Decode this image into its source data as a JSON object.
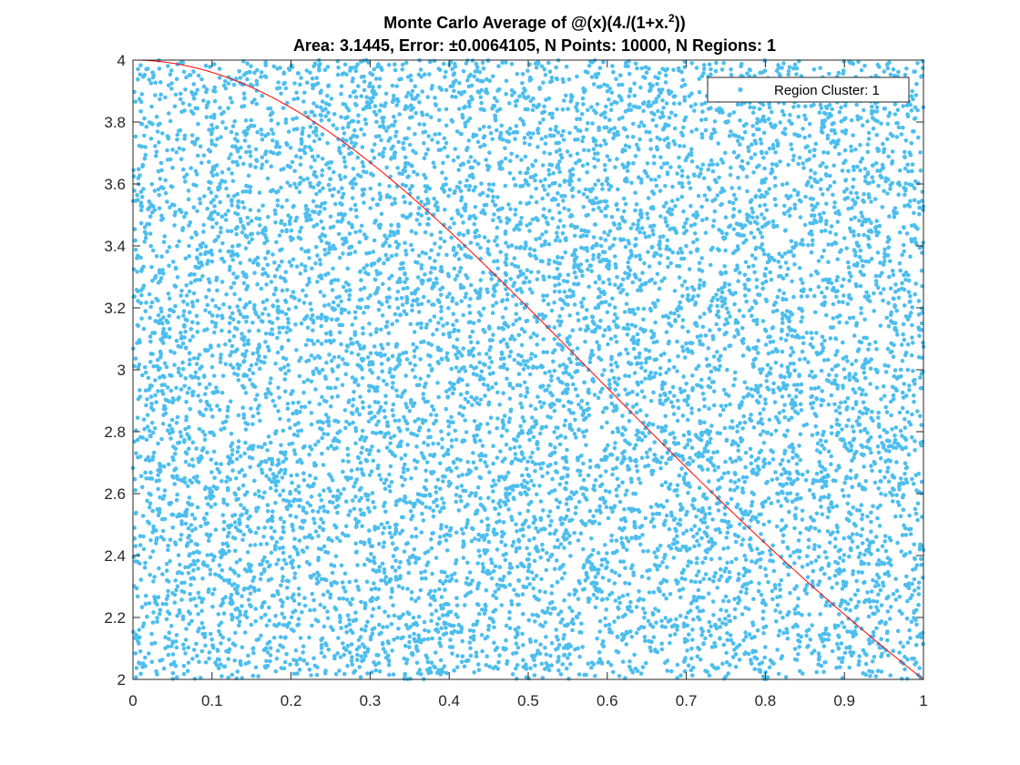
{
  "chart_data": {
    "type": "scatter",
    "title_line1_prefix": "Monte Carlo Average of @(x)(4./(1+x.",
    "title_line1_exponent": "2",
    "title_line1_suffix": "))",
    "title_line2": "Area: 3.1445, Error: ±0.0064105, N Points: 10000, N Regions: 1",
    "xlabel": "",
    "ylabel": "",
    "xlim": [
      0,
      1
    ],
    "ylim": [
      2,
      4
    ],
    "xticks": [
      0,
      0.1,
      0.2,
      0.3,
      0.4,
      0.5,
      0.6,
      0.7,
      0.8,
      0.9,
      1
    ],
    "xtick_labels": [
      "0",
      "0.1",
      "0.2",
      "0.3",
      "0.4",
      "0.5",
      "0.6",
      "0.7",
      "0.8",
      "0.9",
      "1"
    ],
    "yticks": [
      2,
      2.2,
      2.4,
      2.6,
      2.8,
      3,
      3.2,
      3.4,
      3.6,
      3.8,
      4
    ],
    "ytick_labels": [
      "2",
      "2.2",
      "2.4",
      "2.6",
      "2.8",
      "3",
      "3.2",
      "3.4",
      "3.6",
      "3.8",
      "4"
    ],
    "grid": false,
    "legend_position": "top-right",
    "series": [
      {
        "name": "Region Cluster: 1",
        "kind": "uniform-random-scatter",
        "n_points": 10000,
        "x_range": [
          0,
          1
        ],
        "y_range": [
          2,
          4
        ],
        "color": "#4DBEEE"
      }
    ],
    "curve": {
      "function": "4/(1+x^2)",
      "x_range": [
        0,
        1
      ],
      "color": "#FF0000"
    },
    "area": 3.1445,
    "error": 0.0064105,
    "n_regions": 1
  }
}
